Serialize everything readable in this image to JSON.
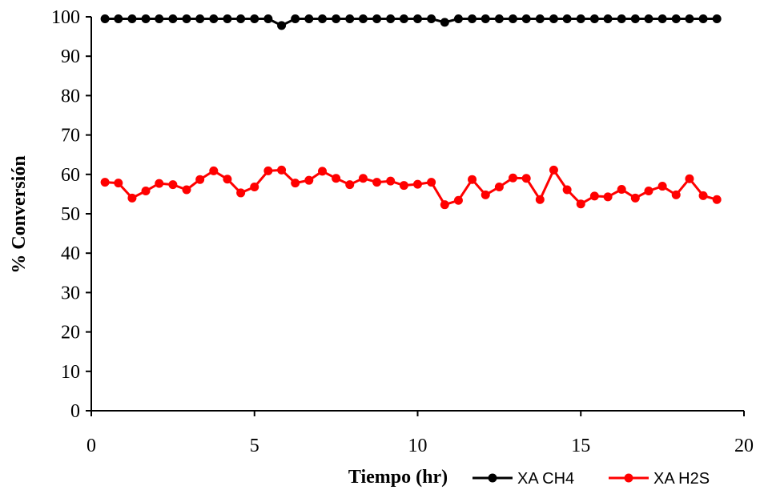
{
  "chart_data": {
    "type": "line",
    "xlabel": "Tiempo (hr)",
    "ylabel": "% Conversión",
    "xlim": [
      0,
      20
    ],
    "ylim": [
      0,
      100
    ],
    "x_ticks": [
      0,
      5,
      10,
      15,
      20
    ],
    "y_ticks": [
      0,
      10,
      20,
      30,
      40,
      50,
      60,
      70,
      80,
      90,
      100
    ],
    "grid": false,
    "legend_position": "bottom-right",
    "series": [
      {
        "name": "XA CH4",
        "color": "#000000",
        "x": [
          0.42,
          0.83,
          1.25,
          1.67,
          2.08,
          2.5,
          2.92,
          3.33,
          3.75,
          4.17,
          4.58,
          5.0,
          5.42,
          5.83,
          6.25,
          6.67,
          7.08,
          7.5,
          7.92,
          8.33,
          8.75,
          9.17,
          9.58,
          10.0,
          10.42,
          10.83,
          11.25,
          11.67,
          12.08,
          12.5,
          12.92,
          13.33,
          13.75,
          14.17,
          14.58,
          15.0,
          15.42,
          15.83,
          16.25,
          16.67,
          17.08,
          17.5,
          17.92,
          18.33,
          18.75,
          19.17
        ],
        "y": [
          99.5,
          99.5,
          99.5,
          99.5,
          99.5,
          99.5,
          99.5,
          99.5,
          99.5,
          99.5,
          99.5,
          99.5,
          99.5,
          97.8,
          99.5,
          99.5,
          99.5,
          99.5,
          99.5,
          99.5,
          99.5,
          99.5,
          99.5,
          99.5,
          99.5,
          98.6,
          99.5,
          99.5,
          99.5,
          99.5,
          99.5,
          99.5,
          99.5,
          99.5,
          99.5,
          99.5,
          99.5,
          99.5,
          99.5,
          99.5,
          99.5,
          99.5,
          99.5,
          99.5,
          99.5,
          99.5
        ]
      },
      {
        "name": "XA H2S",
        "color": "#ff0000",
        "x": [
          0.42,
          0.83,
          1.25,
          1.67,
          2.08,
          2.5,
          2.92,
          3.33,
          3.75,
          4.17,
          4.58,
          5.0,
          5.42,
          5.83,
          6.25,
          6.67,
          7.08,
          7.5,
          7.92,
          8.33,
          8.75,
          9.17,
          9.58,
          10.0,
          10.42,
          10.83,
          11.25,
          11.67,
          12.08,
          12.5,
          12.92,
          13.33,
          13.75,
          14.17,
          14.58,
          15.0,
          15.42,
          15.83,
          16.25,
          16.67,
          17.08,
          17.5,
          17.92,
          18.33,
          18.75,
          19.17
        ],
        "y": [
          58.0,
          57.8,
          54.0,
          55.8,
          57.7,
          57.4,
          56.1,
          58.7,
          60.9,
          58.8,
          55.3,
          56.8,
          60.9,
          61.1,
          57.8,
          58.5,
          60.8,
          59.0,
          57.4,
          59.0,
          58.0,
          58.3,
          57.2,
          57.5,
          58.0,
          52.3,
          53.4,
          58.7,
          54.8,
          56.8,
          59.1,
          59.0,
          53.6,
          61.1,
          56.1,
          52.5,
          54.5,
          54.3,
          56.2,
          54.0,
          55.8,
          57.0,
          54.8,
          58.9,
          54.6,
          53.6
        ]
      }
    ]
  }
}
